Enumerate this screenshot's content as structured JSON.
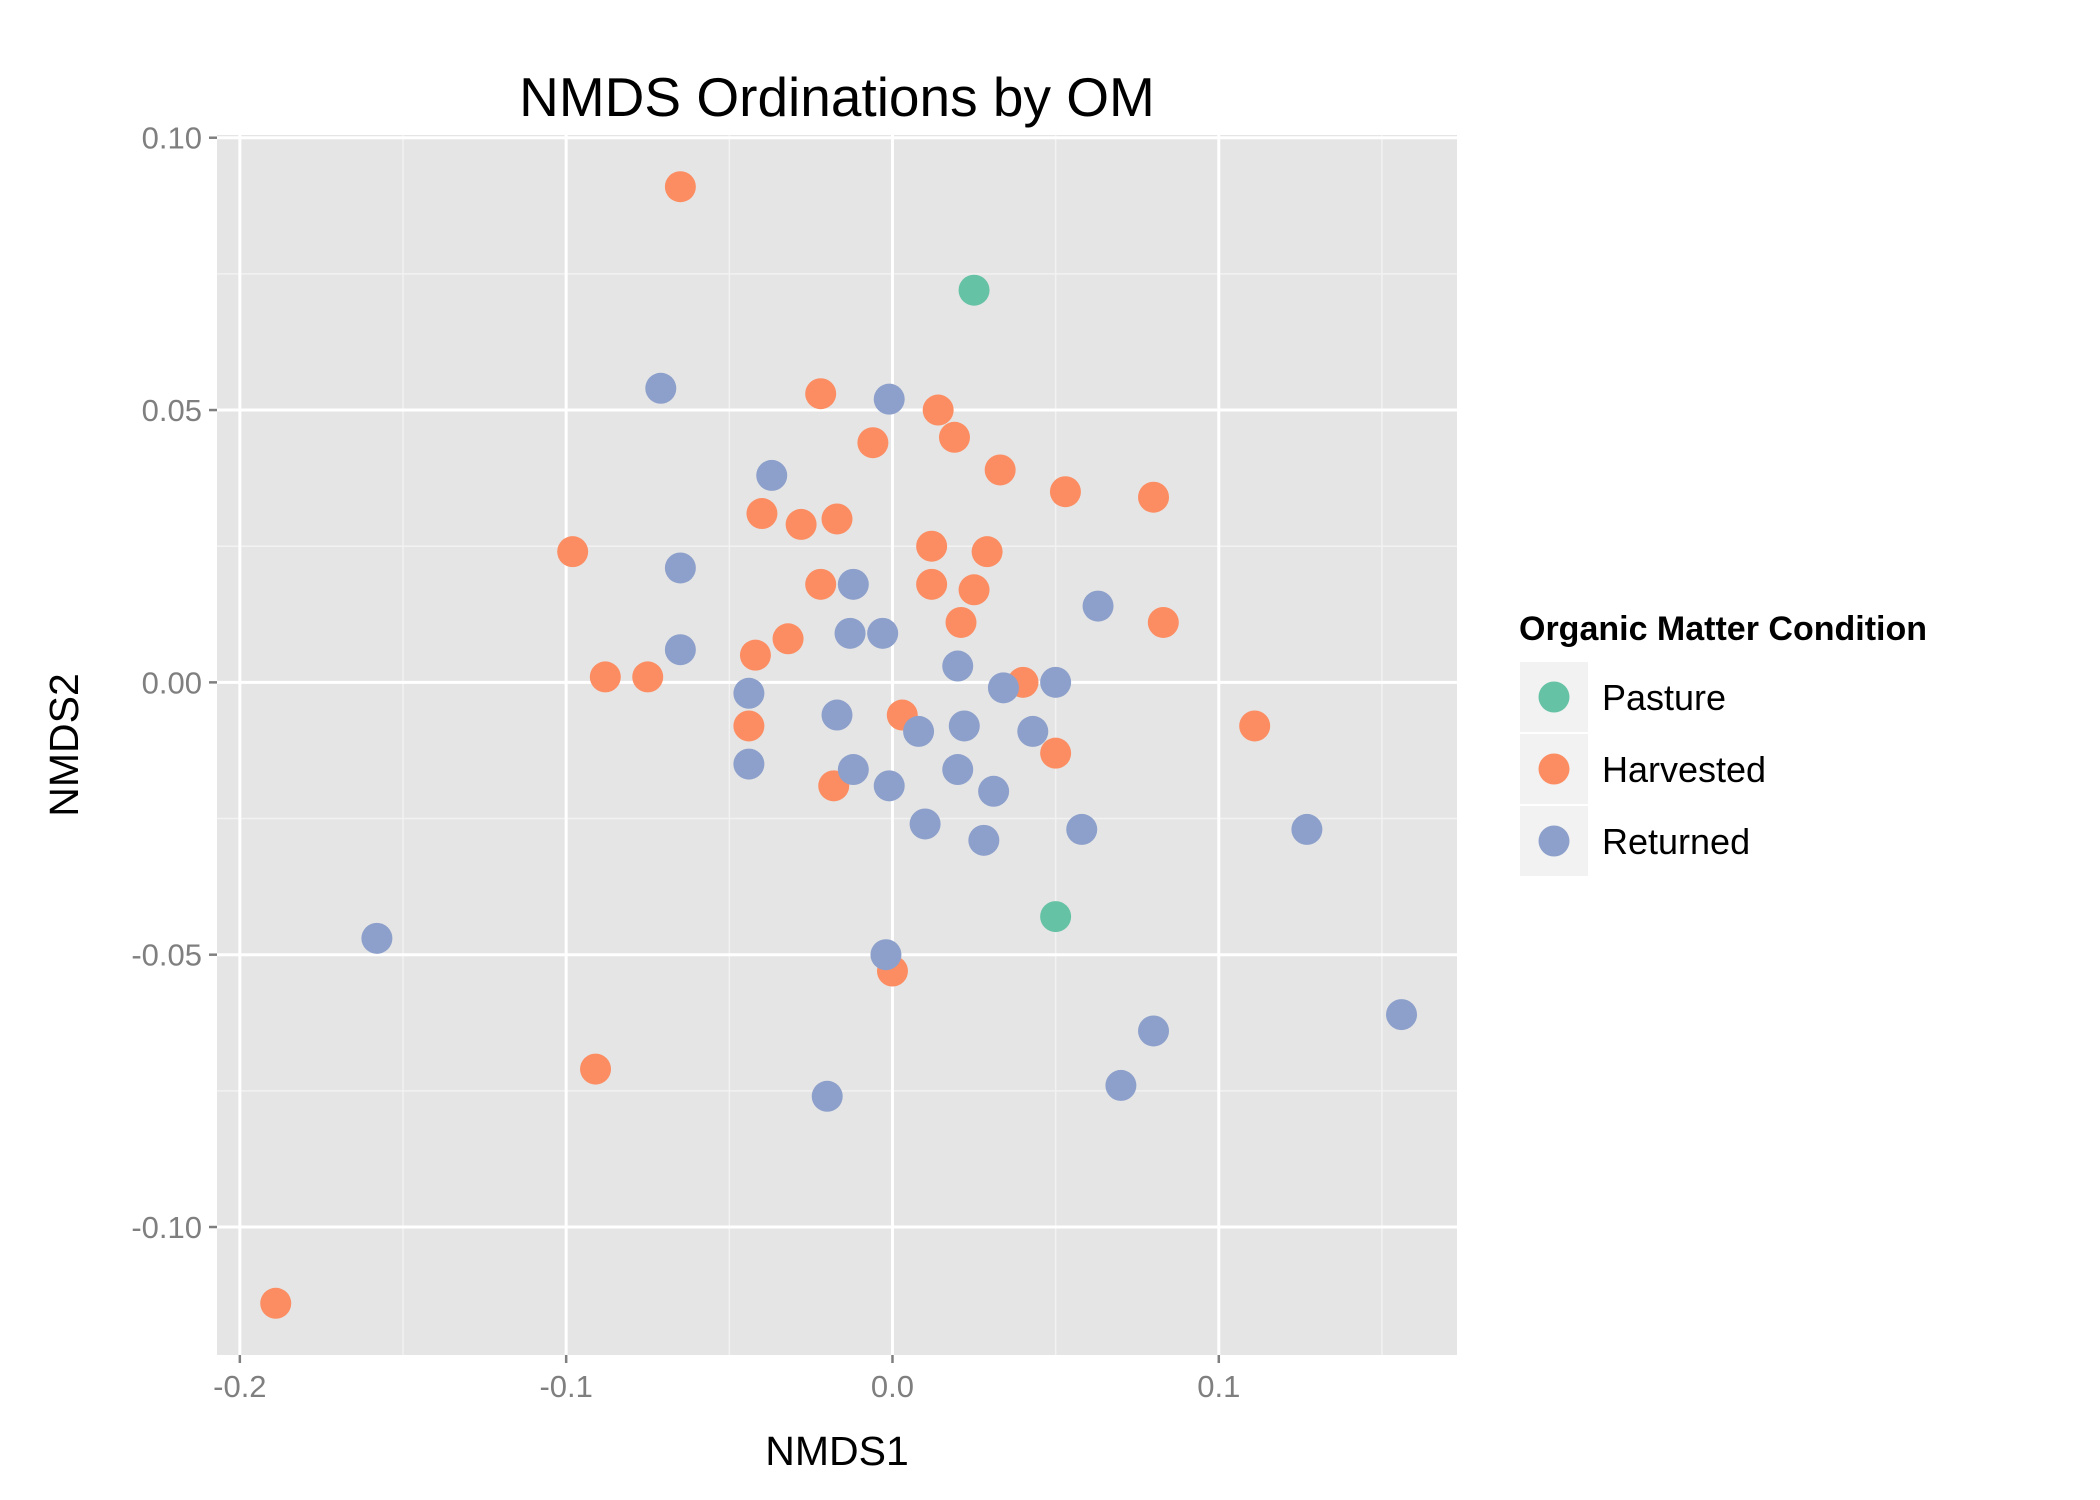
{
  "chart_data": {
    "type": "scatter",
    "title": "NMDS Ordinations by OM",
    "xlabel": "NMDS1",
    "ylabel": "NMDS2",
    "xlim": [
      -0.207,
      0.173
    ],
    "ylim": [
      -0.1235,
      0.1005
    ],
    "x_ticks": [
      {
        "value": -0.2,
        "label": "-0.2"
      },
      {
        "value": -0.1,
        "label": "-0.1"
      },
      {
        "value": 0.0,
        "label": "0.0"
      },
      {
        "value": 0.1,
        "label": "0.1"
      }
    ],
    "y_ticks": [
      {
        "value": 0.1,
        "label": "0.10"
      },
      {
        "value": 0.05,
        "label": "0.05"
      },
      {
        "value": 0.0,
        "label": "0.00"
      },
      {
        "value": -0.05,
        "label": "-0.05"
      },
      {
        "value": -0.1,
        "label": "-0.10"
      }
    ],
    "grid": true,
    "legend": {
      "title": "Organic Matter Condition",
      "placement": "right"
    },
    "series": [
      {
        "name": "Pasture",
        "color": "#66c2a5",
        "points": [
          {
            "x": 0.025,
            "y": 0.072
          },
          {
            "x": 0.05,
            "y": -0.043
          }
        ]
      },
      {
        "name": "Harvested",
        "color": "#fc8d62",
        "points": [
          {
            "x": -0.065,
            "y": 0.091
          },
          {
            "x": -0.022,
            "y": 0.053
          },
          {
            "x": 0.014,
            "y": 0.05
          },
          {
            "x": -0.006,
            "y": 0.044
          },
          {
            "x": 0.019,
            "y": 0.045
          },
          {
            "x": 0.033,
            "y": 0.039
          },
          {
            "x": 0.053,
            "y": 0.035
          },
          {
            "x": 0.08,
            "y": 0.034
          },
          {
            "x": -0.04,
            "y": 0.031
          },
          {
            "x": -0.028,
            "y": 0.029
          },
          {
            "x": -0.017,
            "y": 0.03
          },
          {
            "x": -0.098,
            "y": 0.024
          },
          {
            "x": 0.012,
            "y": 0.025
          },
          {
            "x": 0.029,
            "y": 0.024
          },
          {
            "x": -0.022,
            "y": 0.018
          },
          {
            "x": 0.012,
            "y": 0.018
          },
          {
            "x": 0.025,
            "y": 0.017
          },
          {
            "x": 0.021,
            "y": 0.011
          },
          {
            "x": 0.083,
            "y": 0.011
          },
          {
            "x": -0.032,
            "y": 0.008
          },
          {
            "x": -0.042,
            "y": 0.005
          },
          {
            "x": -0.088,
            "y": 0.001
          },
          {
            "x": -0.075,
            "y": 0.001
          },
          {
            "x": 0.04,
            "y": 0.0
          },
          {
            "x": 0.003,
            "y": -0.006
          },
          {
            "x": 0.111,
            "y": -0.008
          },
          {
            "x": -0.044,
            "y": -0.008
          },
          {
            "x": 0.05,
            "y": -0.013
          },
          {
            "x": -0.018,
            "y": -0.019
          },
          {
            "x": 0.0,
            "y": -0.053
          },
          {
            "x": -0.091,
            "y": -0.071
          },
          {
            "x": -0.189,
            "y": -0.114
          }
        ]
      },
      {
        "name": "Returned",
        "color": "#8da0cb",
        "points": [
          {
            "x": -0.071,
            "y": 0.054
          },
          {
            "x": -0.001,
            "y": 0.052
          },
          {
            "x": -0.037,
            "y": 0.038
          },
          {
            "x": -0.065,
            "y": 0.021
          },
          {
            "x": -0.012,
            "y": 0.018
          },
          {
            "x": 0.063,
            "y": 0.014
          },
          {
            "x": -0.013,
            "y": 0.009
          },
          {
            "x": -0.003,
            "y": 0.009
          },
          {
            "x": -0.065,
            "y": 0.006
          },
          {
            "x": 0.02,
            "y": 0.003
          },
          {
            "x": 0.05,
            "y": 0.0
          },
          {
            "x": 0.034,
            "y": -0.001
          },
          {
            "x": -0.044,
            "y": -0.002
          },
          {
            "x": -0.017,
            "y": -0.006
          },
          {
            "x": 0.008,
            "y": -0.009
          },
          {
            "x": 0.022,
            "y": -0.008
          },
          {
            "x": 0.043,
            "y": -0.009
          },
          {
            "x": -0.044,
            "y": -0.015
          },
          {
            "x": -0.012,
            "y": -0.016
          },
          {
            "x": 0.02,
            "y": -0.016
          },
          {
            "x": -0.001,
            "y": -0.019
          },
          {
            "x": 0.031,
            "y": -0.02
          },
          {
            "x": 0.01,
            "y": -0.026
          },
          {
            "x": 0.058,
            "y": -0.027
          },
          {
            "x": 0.127,
            "y": -0.027
          },
          {
            "x": 0.028,
            "y": -0.029
          },
          {
            "x": -0.158,
            "y": -0.047
          },
          {
            "x": -0.002,
            "y": -0.05
          },
          {
            "x": 0.08,
            "y": -0.064
          },
          {
            "x": 0.156,
            "y": -0.061
          },
          {
            "x": 0.07,
            "y": -0.074
          },
          {
            "x": -0.02,
            "y": -0.076
          }
        ]
      }
    ]
  }
}
